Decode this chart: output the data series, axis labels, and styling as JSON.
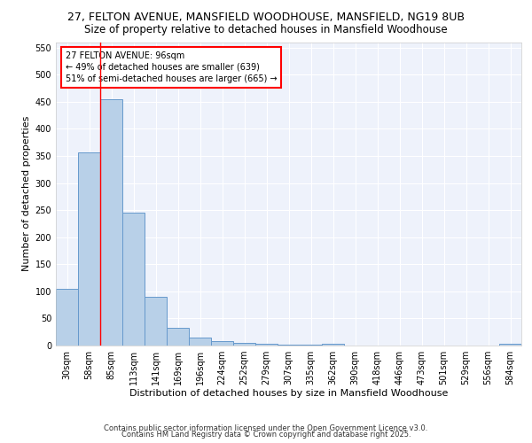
{
  "title_line1": "27, FELTON AVENUE, MANSFIELD WOODHOUSE, MANSFIELD, NG19 8UB",
  "title_line2": "Size of property relative to detached houses in Mansfield Woodhouse",
  "xlabel": "Distribution of detached houses by size in Mansfield Woodhouse",
  "ylabel": "Number of detached properties",
  "categories": [
    "30sqm",
    "58sqm",
    "85sqm",
    "113sqm",
    "141sqm",
    "169sqm",
    "196sqm",
    "224sqm",
    "252sqm",
    "279sqm",
    "307sqm",
    "335sqm",
    "362sqm",
    "390sqm",
    "418sqm",
    "446sqm",
    "473sqm",
    "501sqm",
    "529sqm",
    "556sqm",
    "584sqm"
  ],
  "values": [
    105,
    357,
    455,
    245,
    90,
    33,
    15,
    8,
    5,
    3,
    2,
    1,
    4,
    0,
    0,
    0,
    0,
    0,
    0,
    0,
    3
  ],
  "bar_color": "#b8d0e8",
  "bar_edge_color": "#6699cc",
  "red_line_x": 1.5,
  "annotation_text": "27 FELTON AVENUE: 96sqm\n← 49% of detached houses are smaller (639)\n51% of semi-detached houses are larger (665) →",
  "annotation_box_color": "white",
  "annotation_box_edge_color": "red",
  "ylim": [
    0,
    560
  ],
  "yticks": [
    0,
    50,
    100,
    150,
    200,
    250,
    300,
    350,
    400,
    450,
    500,
    550
  ],
  "footer_line1": "Contains HM Land Registry data © Crown copyright and database right 2025.",
  "footer_line2": "Contains public sector information licensed under the Open Government Licence v3.0.",
  "bg_color": "#eef2fb",
  "grid_color": "white",
  "title_fontsize": 9,
  "subtitle_fontsize": 8.5,
  "axis_label_fontsize": 8,
  "tick_fontsize": 7,
  "annotation_fontsize": 7,
  "footer_fontsize": 6
}
